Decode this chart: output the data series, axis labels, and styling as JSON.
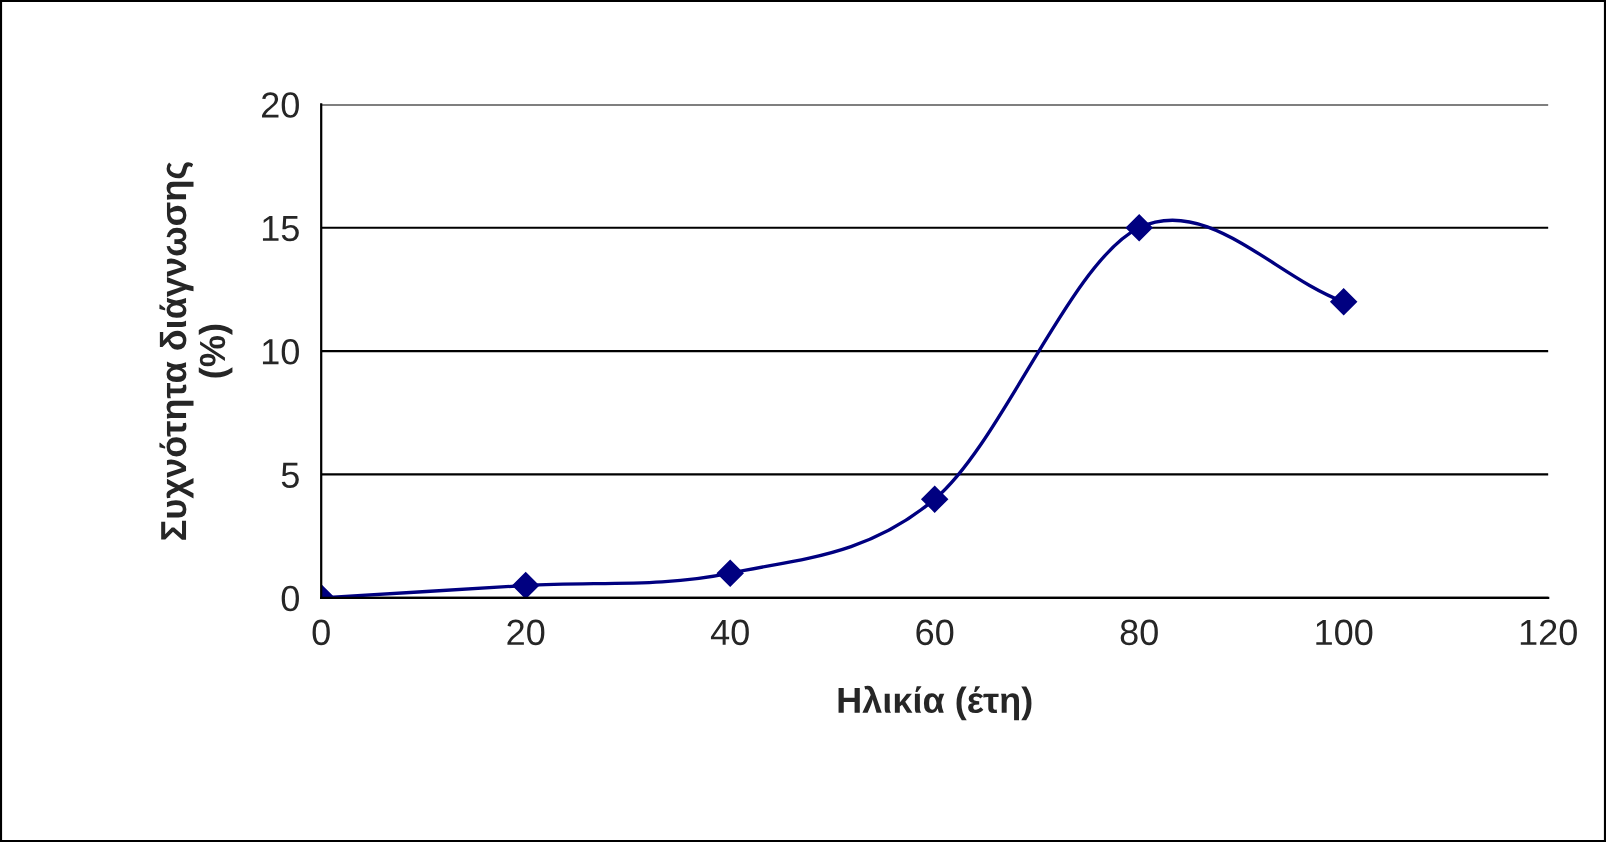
{
  "chart_data": {
    "type": "line",
    "xlabel": "Ηλικία (έτη)",
    "ylabel": "Συχνότητα διάγνωσης\n(%)",
    "x": [
      0,
      20,
      40,
      60,
      80,
      100
    ],
    "series": [
      {
        "color": "#000080",
        "values": [
          0,
          0.5,
          1,
          4,
          15,
          12
        ]
      }
    ],
    "xlim": [
      0,
      120
    ],
    "xticks": [
      0,
      20,
      40,
      60,
      80,
      100,
      120
    ],
    "ylim": [
      0,
      20
    ],
    "yticks": [
      0,
      5,
      10,
      15,
      20
    ],
    "grid": "y",
    "marker": "diamond",
    "line_style": "solid",
    "legend": false
  }
}
